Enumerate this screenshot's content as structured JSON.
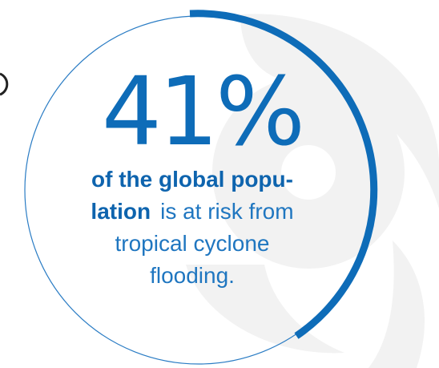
{
  "statistic": {
    "value": "41%",
    "highlight_line1": "of the global popu-",
    "highlight_line2": "lation",
    "rest_line2": "is at risk from",
    "rest_line3": "tropical cyclone",
    "rest_line4": "flooding."
  },
  "colors": {
    "accent": "#0e6cb8",
    "ring_thin": "#2a7cc4",
    "watermark": "#f3f3f3"
  },
  "icons": {
    "watermark": "cyclone-icon"
  }
}
